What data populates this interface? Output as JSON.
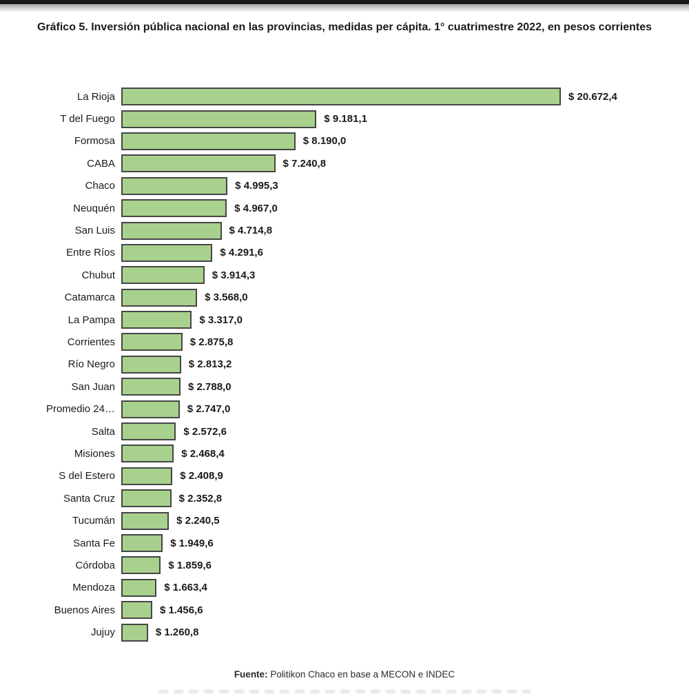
{
  "page": {
    "title": "Gráfico 5. Inversión pública nacional en las provincias, medidas per cápita. 1° cuatrimestre 2022, en pesos corrientes",
    "source_label": "Fuente:",
    "source_text": " Politikon Chaco en base a MECON e INDEC"
  },
  "chart_data": {
    "type": "bar",
    "orientation": "horizontal",
    "title": "Gráfico 5. Inversión pública nacional en las provincias, medidas per cápita. 1° cuatrimestre 2022, en pesos corrientes",
    "xlabel": "",
    "ylabel": "",
    "xlim": [
      0,
      20672.4
    ],
    "grid": false,
    "legend": false,
    "bar_fill_color": "#a9d18e",
    "bar_border_color": "#454545",
    "text_color": "#1a1a1a",
    "categories": [
      "La Rioja",
      "T del Fuego",
      "Formosa",
      "CABA",
      "Chaco",
      "Neuquén",
      "San Luis",
      "Entre Ríos",
      "Chubut",
      "Catamarca",
      "La Pampa",
      "Corrientes",
      "Río Negro",
      "San Juan",
      "Promedio 24…",
      "Salta",
      "Misiones",
      "S del Estero",
      "Santa Cruz",
      "Tucumán",
      "Santa Fe",
      "Córdoba",
      "Mendoza",
      "Buenos Aires",
      "Jujuy"
    ],
    "values": [
      20672.4,
      9181.1,
      8190.0,
      7240.8,
      4995.3,
      4967.0,
      4714.8,
      4291.6,
      3914.3,
      3568.0,
      3317.0,
      2875.8,
      2813.2,
      2788.0,
      2747.0,
      2572.6,
      2468.4,
      2408.9,
      2352.8,
      2240.5,
      1949.6,
      1859.6,
      1663.4,
      1456.6,
      1260.8
    ],
    "value_labels": [
      "$ 20.672,4",
      "$ 9.181,1",
      "$ 8.190,0",
      "$ 7.240,8",
      "$ 4.995,3",
      "$ 4.967,0",
      "$ 4.714,8",
      "$ 4.291,6",
      "$ 3.914,3",
      "$ 3.568,0",
      "$ 3.317,0",
      "$ 2.875,8",
      "$ 2.813,2",
      "$ 2.788,0",
      "$ 2.747,0",
      "$ 2.572,6",
      "$ 2.468,4",
      "$ 2.408,9",
      "$ 2.352,8",
      "$ 2.240,5",
      "$ 1.949,6",
      "$ 1.859,6",
      "$ 1.663,4",
      "$ 1.456,6",
      "$ 1.260,8"
    ],
    "source_note": "Fuente: Politikon Chaco en base a MECON e INDEC"
  }
}
